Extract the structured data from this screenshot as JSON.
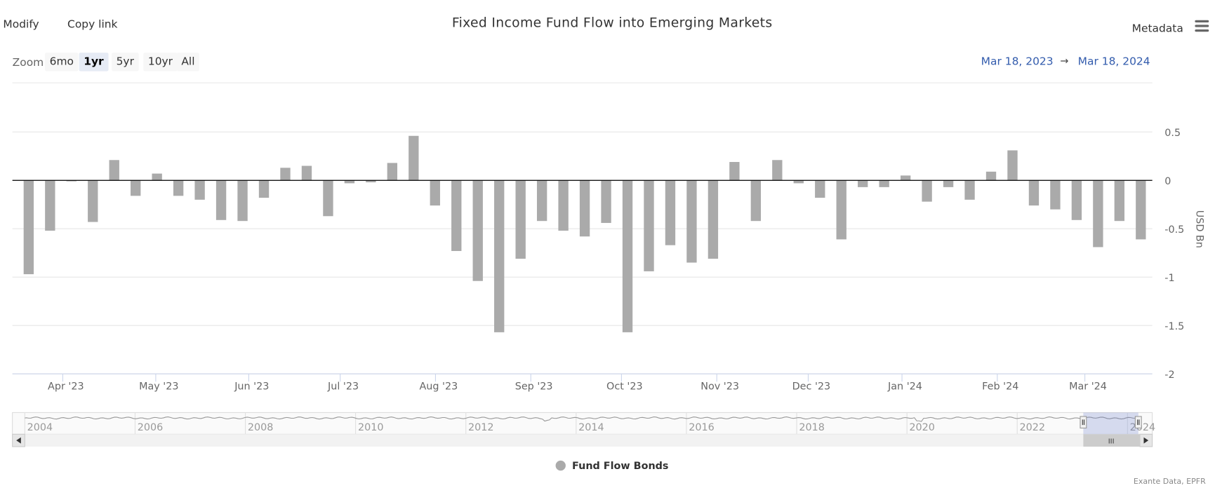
{
  "toolbar": {
    "modify": "Modify",
    "copy_link": "Copy link",
    "metadata": "Metadata",
    "menu_icon": "hamburger-menu-icon"
  },
  "zoom": {
    "label": "Zoom",
    "buttons": [
      "6mo",
      "1yr",
      "5yr",
      "10yr",
      "All"
    ],
    "selected": "1yr"
  },
  "range": {
    "from": "Mar 18, 2023",
    "arrow": "→",
    "to": "Mar 18, 2024"
  },
  "navigator": {
    "years": [
      "2004",
      "2006",
      "2008",
      "2010",
      "2012",
      "2014",
      "2016",
      "2018",
      "2020",
      "2022",
      "2024"
    ],
    "scroll_handle": "III"
  },
  "legend": {
    "label": "Fund Flow Bonds"
  },
  "credits": "Exante Data, EPFR",
  "colors": {
    "bar": "#aaaaaa",
    "range_text": "#335cad",
    "selected_zoom": "#e6ebf5"
  },
  "chart_data": {
    "type": "bar",
    "title": "Fixed Income Fund Flow into Emerging Markets",
    "ylabel": "USD Bn",
    "ylim": [
      -2,
      0.75
    ],
    "yticks": [
      0.5,
      0,
      -0.5,
      -1,
      -1.5,
      -2
    ],
    "ytick_labels": [
      "0.5",
      "0",
      "-0.5",
      "-1",
      "-1.5",
      "-2"
    ],
    "xtick_labels": [
      "Apr '23",
      "May '23",
      "Jun '23",
      "Jul '23",
      "Aug '23",
      "Sep '23",
      "Oct '23",
      "Nov '23",
      "Dec '23",
      "Jan '24",
      "Feb '24",
      "Mar '24"
    ],
    "grid": true,
    "legend_position": "bottom",
    "series": [
      {
        "name": "Fund Flow Bonds",
        "values": [
          -0.97,
          -0.52,
          -0.01,
          -0.43,
          0.21,
          -0.16,
          0.07,
          -0.16,
          -0.2,
          -0.41,
          -0.42,
          -0.18,
          0.13,
          0.15,
          -0.37,
          -0.03,
          -0.02,
          0.18,
          0.46,
          -0.26,
          -0.73,
          -1.04,
          -1.57,
          -0.81,
          -0.42,
          -0.52,
          -0.58,
          -0.44,
          -1.57,
          -0.94,
          -0.67,
          -0.85,
          -0.81,
          0.19,
          -0.42,
          0.21,
          -0.03,
          -0.18,
          -0.61,
          -0.07,
          -0.07,
          0.05,
          -0.22,
          -0.07,
          -0.2,
          0.09,
          0.31,
          -0.26,
          -0.3,
          -0.41,
          -0.69,
          -0.42,
          -0.61
        ]
      }
    ]
  }
}
